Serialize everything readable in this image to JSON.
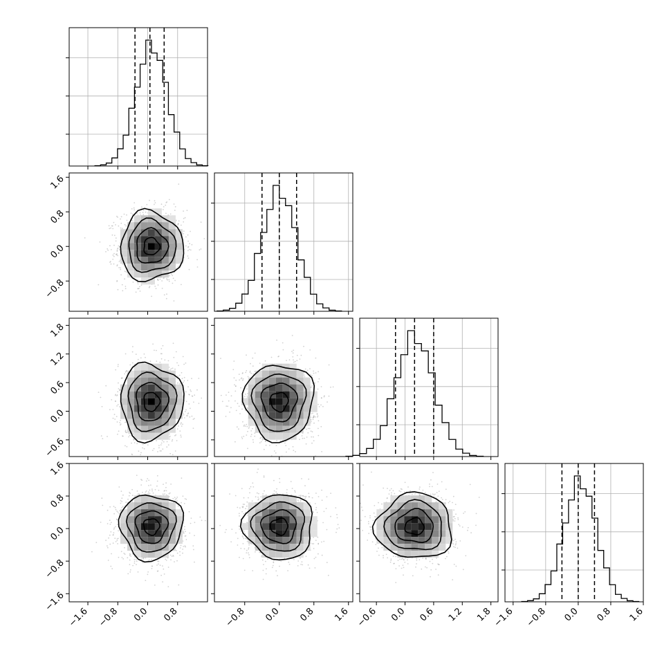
{
  "chart_data": {
    "type": "corner",
    "dimensions": 4,
    "grid": true,
    "axes": [
      {
        "range": [
          -2.1,
          1.6
        ],
        "ticks": [
          -1.6,
          -0.8,
          0.0,
          0.8
        ],
        "tick_labels": [
          "−1.6",
          "−0.8",
          "0.0",
          "0.8"
        ]
      },
      {
        "range": [
          -1.5,
          1.7
        ],
        "ticks": [
          -0.8,
          0.0,
          0.8,
          1.6
        ],
        "tick_labels": [
          "−0.8",
          "0.0",
          "0.8",
          "1.6"
        ]
      },
      {
        "range": [
          -0.95,
          1.95
        ],
        "ticks": [
          -0.6,
          0.0,
          0.6,
          1.2,
          1.8
        ],
        "tick_labels": [
          "−0.6",
          "0.0",
          "0.6",
          "1.2",
          "1.8"
        ]
      },
      {
        "range": [
          -1.8,
          1.6
        ],
        "ticks": [
          -1.6,
          -0.8,
          0.0,
          0.8,
          1.6
        ],
        "tick_labels": [
          "−1.6",
          "−0.8",
          "0.0",
          "0.8",
          "1.6"
        ]
      }
    ],
    "left_axes": [
      {
        "row": 1,
        "ticks": [
          -0.8,
          0.0,
          0.8,
          1.6
        ],
        "tick_labels": [
          "−0.8",
          "0.0",
          "0.8",
          "1.6"
        ]
      },
      {
        "row": 2,
        "ticks": [
          -0.6,
          0.0,
          0.6,
          1.2,
          1.8
        ],
        "tick_labels": [
          "−0.6",
          "0.0",
          "0.6",
          "1.2",
          "1.8"
        ]
      },
      {
        "row": 3,
        "ticks": [
          -1.6,
          -0.8,
          0.0,
          0.8,
          1.6
        ],
        "tick_labels": [
          "−1.6",
          "−0.8",
          "0.0",
          "0.8",
          "1.6"
        ]
      }
    ],
    "marginals": [
      {
        "dim": 0,
        "mean": 0.1,
        "std": 0.42,
        "quantiles": [
          -0.34,
          0.06,
          0.44
        ]
      },
      {
        "dim": 1,
        "mean": 0.0,
        "std": 0.4,
        "quantiles": [
          -0.4,
          0.0,
          0.4
        ]
      },
      {
        "dim": 2,
        "mean": 0.2,
        "std": 0.4,
        "quantiles": [
          -0.2,
          0.2,
          0.6
        ]
      },
      {
        "dim": 3,
        "mean": 0.05,
        "std": 0.4,
        "quantiles": [
          -0.4,
          0.0,
          0.4
        ]
      }
    ],
    "hist_bins": 20,
    "contour_levels": [
      "0.5 sigma",
      "1 sigma",
      "1.5 sigma",
      "2 sigma"
    ]
  }
}
